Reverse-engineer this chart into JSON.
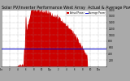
{
  "title": "Solar PV/Inverter Performance West Array  Actual & Average Power Output",
  "title_fontsize": 3.5,
  "bg_color": "#aaaaaa",
  "plot_bg_color": "#ffffff",
  "grid_color": "#999999",
  "bar_color": "#cc0000",
  "avg_line_color": "#0000cc",
  "avg_line_value": 570,
  "legend_labels": [
    "Actual Power",
    "Average Power"
  ],
  "legend_colors": [
    "#cc0000",
    "#0000cc"
  ],
  "ymax": 1800,
  "ymin": 0,
  "num_points": 300
}
